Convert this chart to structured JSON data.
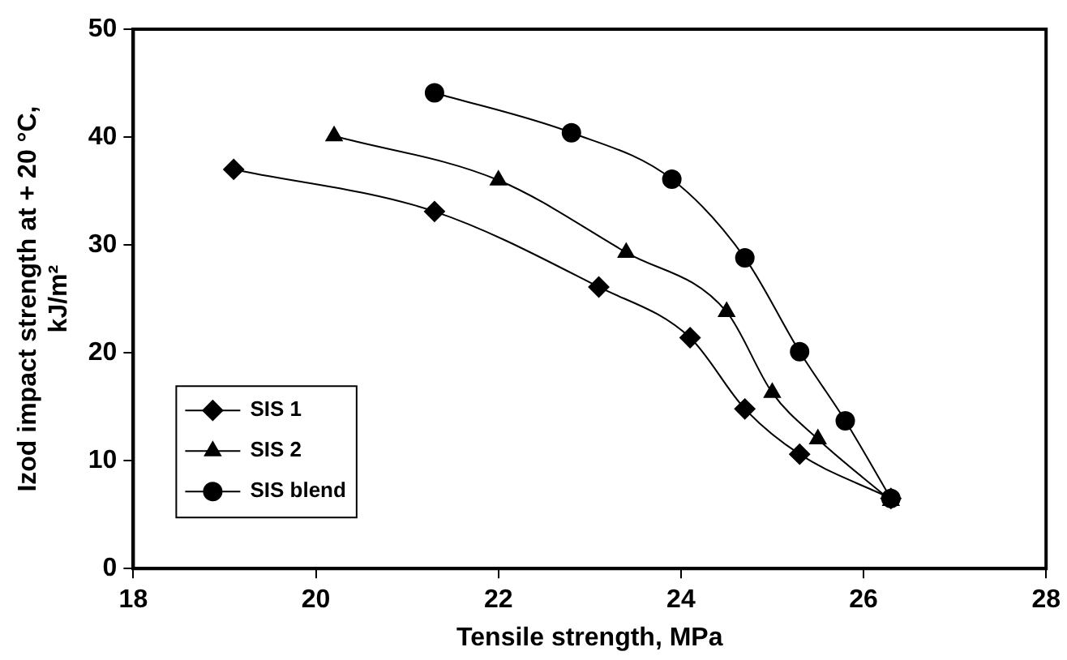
{
  "chart_data": {
    "type": "line",
    "xlabel": "Tensile strength, MPa",
    "ylabel": "Izod impact strength at + 20 °C,\nkJ/m²",
    "xlim": [
      18,
      28
    ],
    "xticks": [
      18,
      20,
      22,
      24,
      26,
      28
    ],
    "ylim": [
      0,
      50
    ],
    "yticks": [
      0,
      10,
      20,
      30,
      40,
      50
    ],
    "grid": false,
    "legend": "bottom left",
    "series": [
      {
        "name": "SIS 1",
        "color": "#000000",
        "marker": "diamond",
        "x": [
          19.1,
          21.3,
          23.1,
          24.1,
          24.7,
          25.3,
          26.3
        ],
        "values": [
          37,
          33.1,
          26.1,
          21.4,
          14.8,
          10.6,
          6.5
        ]
      },
      {
        "name": "SIS 2",
        "color": "#000000",
        "marker": "triangle",
        "x": [
          20.2,
          22,
          23.4,
          24.5,
          25,
          25.5,
          26.3
        ],
        "values": [
          40.1,
          36,
          29.3,
          23.8,
          16.3,
          12,
          6.3
        ]
      },
      {
        "name": "SIS blend",
        "color": "#000000",
        "marker": "circle",
        "x": [
          21.3,
          22.8,
          23.9,
          24.7,
          25.3,
          25.8,
          26.3
        ],
        "values": [
          44.1,
          40.4,
          36.1,
          28.8,
          20.1,
          13.7,
          6.5
        ]
      }
    ]
  }
}
